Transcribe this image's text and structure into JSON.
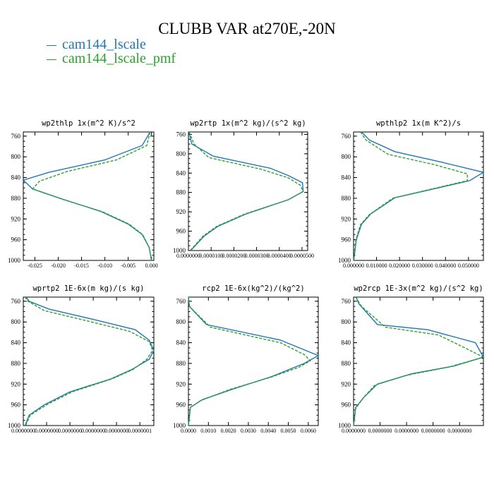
{
  "title": "CLUBB VAR at270E,-20N",
  "legend": [
    {
      "label": "cam144_lscale",
      "color": "#1f77b4"
    },
    {
      "label": "cam144_lscale_pmf",
      "color": "#2ca02c"
    }
  ],
  "chart_data": [
    {
      "type": "line",
      "title": "wp2thlp   1x(m^2 K)/s^2",
      "xlim": [
        -0.0275,
        0.0005
      ],
      "ylim": [
        1000,
        752
      ],
      "xticks": [
        "-0.025",
        "-0.020",
        "-0.015",
        "-0.010",
        "-0.005",
        "0.000"
      ],
      "xtick_values": [
        -0.025,
        -0.02,
        -0.015,
        -0.01,
        -0.005,
        0.0
      ],
      "yticks": [
        "760",
        "800",
        "840",
        "880",
        "920",
        "960",
        "1000"
      ],
      "series": [
        {
          "name": "cam144_lscale",
          "color": "#1f77b4",
          "dash": "",
          "x": [
            -0.0003,
            -0.002,
            -0.01,
            -0.022,
            -0.0275,
            -0.0255,
            -0.019,
            -0.011,
            -0.005,
            -0.002,
            -0.0005,
            0.0
          ],
          "y": [
            752,
            778,
            806,
            830,
            845,
            862,
            882,
            905,
            930,
            950,
            975,
            1000
          ]
        },
        {
          "name": "cam144_lscale_pmf",
          "color": "#2ca02c",
          "dash": "4,2",
          "x": [
            -0.0003,
            -0.001,
            -0.0075,
            -0.018,
            -0.024,
            -0.0255,
            -0.0188,
            -0.0105,
            -0.0048,
            -0.0019,
            -0.0005,
            0.0
          ],
          "y": [
            752,
            778,
            806,
            828,
            847,
            862,
            883,
            906,
            930,
            950,
            975,
            1000
          ]
        }
      ]
    },
    {
      "type": "line",
      "title": "wp2rtp   1x(m^2 kg)/(s^2 kg)",
      "xlim": [
        0.0,
        5.25e-05
      ],
      "ylim": [
        1000,
        755
      ],
      "xticks": [
        "0.0000000",
        "0.0000100",
        "0.0000200",
        "0.0000300",
        "0.0000400",
        "0.0000500"
      ],
      "xtick_values": [
        0.0,
        1e-05,
        2e-05,
        3e-05,
        4e-05,
        5e-05
      ],
      "yticks": [
        "760",
        "800",
        "840",
        "880",
        "920",
        "960",
        "1000"
      ],
      "series": [
        {
          "name": "cam144_lscale",
          "color": "#1f77b4",
          "dash": "",
          "x": [
            2e-07,
            1.5e-06,
            1.1e-05,
            3.6e-05,
            4.4e-05,
            5.02e-05,
            5.05e-05,
            4.4e-05,
            2.5e-05,
            1.3e-05,
            7e-06,
            1e-06
          ],
          "y": [
            755,
            780,
            805,
            830,
            845,
            860,
            878,
            895,
            925,
            950,
            970,
            1000
          ]
        },
        {
          "name": "cam144_lscale_pmf",
          "color": "#2ca02c",
          "dash": "4,2",
          "x": [
            3e-07,
            2.5e-06,
            9e-06,
            3.2e-05,
            4.4e-05,
            4.92e-05,
            5.05e-05,
            4.4e-05,
            2.45e-05,
            1.25e-05,
            6.5e-06,
            8e-07
          ],
          "y": [
            755,
            780,
            808,
            832,
            850,
            865,
            878,
            895,
            925,
            950,
            970,
            1000
          ]
        }
      ]
    },
    {
      "type": "line",
      "title": "wpthlp2   1x(m K^2)/s",
      "xlim": [
        0.0,
        0.0565
      ],
      "ylim": [
        1000,
        752
      ],
      "xticks": [
        "0.000000",
        "0.010000",
        "0.020000",
        "0.030000",
        "0.040000",
        "0.050000"
      ],
      "xtick_values": [
        0.0,
        0.01,
        0.02,
        0.03,
        0.04,
        0.05
      ],
      "yticks": [
        "760",
        "800",
        "840",
        "880",
        "920",
        "960",
        "1000"
      ],
      "series": [
        {
          "name": "cam144_lscale",
          "color": "#1f77b4",
          "dash": "",
          "x": [
            0.0035,
            0.007,
            0.018,
            0.038,
            0.0565,
            0.0505,
            0.018,
            0.0075,
            0.0035,
            0.0012,
            0.0001
          ],
          "y": [
            752,
            768,
            790,
            810,
            830,
            846,
            879,
            910,
            930,
            960,
            1000
          ]
        },
        {
          "name": "cam144_lscale_pmf",
          "color": "#2ca02c",
          "dash": "4,2",
          "x": [
            0.003,
            0.0055,
            0.015,
            0.035,
            0.0495,
            0.0495,
            0.017,
            0.0068,
            0.003,
            0.001,
            0.0001
          ],
          "y": [
            752,
            768,
            795,
            815,
            833,
            846,
            880,
            912,
            931,
            960,
            1000
          ]
        }
      ]
    },
    {
      "type": "line",
      "title": "wprtp2   1E-6x(m kg)/(s kg)",
      "xlim": [
        0.0,
        1.12e-07
      ],
      "ylim": [
        1000,
        752
      ],
      "xticks": [
        "0.0000000",
        "0.0000000",
        "0.0000000",
        "0.0000000",
        "0.0000000",
        "0.0000001"
      ],
      "xtick_values": [
        0.0,
        2e-08,
        4e-08,
        6e-08,
        8e-08,
        1e-07
      ],
      "yticks": [
        "760",
        "800",
        "840",
        "880",
        "920",
        "960",
        "1000"
      ],
      "series": [
        {
          "name": "cam144_lscale",
          "color": "#1f77b4",
          "dash": "",
          "x": [
            2.5e-09,
            5e-09,
            2.2e-08,
            6e-08,
            9.6e-08,
            1.08e-07,
            1.12e-07,
            1.08e-07,
            9.3e-08,
            7.5e-08,
            4e-08,
            1.8e-08,
            5e-09,
            1.5e-09
          ],
          "y": [
            752,
            760,
            775,
            795,
            815,
            835,
            855,
            872,
            892,
            910,
            935,
            960,
            980,
            1000
          ]
        },
        {
          "name": "cam144_lscale_pmf",
          "color": "#2ca02c",
          "dash": "4,2",
          "x": [
            1.5e-09,
            4e-09,
            1.8e-08,
            5.5e-08,
            9.1e-08,
            1.08e-07,
            1.11e-07,
            1.06e-07,
            9.4e-08,
            7.6e-08,
            4.2e-08,
            2e-08,
            6e-09,
            2e-09
          ],
          "y": [
            752,
            760,
            778,
            798,
            818,
            838,
            855,
            872,
            892,
            910,
            935,
            960,
            980,
            1000
          ]
        }
      ]
    },
    {
      "type": "line",
      "title": "rcp2   1E-6x(kg^2)/(kg^2)",
      "xlim": [
        0.0,
        6.5e-09
      ],
      "ylim": [
        1000,
        752
      ],
      "xticks": [
        "0.0000",
        "0.0010",
        "0.0020",
        "0.0030",
        "0.0040",
        "0.0050",
        "0.0060"
      ],
      "xtick_values": [
        0.0,
        1e-09,
        2e-09,
        3e-09,
        4e-09,
        5e-09,
        6e-09
      ],
      "yticks": [
        "760",
        "800",
        "840",
        "880",
        "920",
        "960",
        "1000"
      ],
      "series": [
        {
          "name": "cam144_lscale",
          "color": "#1f77b4",
          "dash": "",
          "x": [
            0.0,
            5e-11,
            9e-10,
            4.6e-09,
            6.5e-09,
            5.8e-09,
            4.2e-09,
            2.2e-09,
            7e-10,
            1e-10,
            0.0
          ],
          "y": [
            752,
            770,
            805,
            835,
            865,
            880,
            905,
            930,
            950,
            965,
            1000
          ]
        },
        {
          "name": "cam144_lscale_pmf",
          "color": "#2ca02c",
          "dash": "4,2",
          "x": [
            0.0,
            5e-11,
            1.1e-09,
            4.6e-09,
            5.8e-09,
            6.1e-09,
            5.5e-09,
            4.1e-09,
            2.1e-09,
            6e-10,
            1e-10,
            0.0
          ],
          "y": [
            752,
            770,
            810,
            840,
            863,
            875,
            888,
            907,
            930,
            952,
            965,
            1000
          ]
        }
      ]
    },
    {
      "type": "line",
      "title": "wp2rcp   1E-3x(m^2 kg)/(s^2 kg)",
      "xlim": [
        0.0,
        2.45e-08
      ],
      "ylim": [
        1000,
        752
      ],
      "xticks": [
        "0.0000000",
        "0.0000000",
        "0.0000000",
        "0.0000000",
        "0.0000000"
      ],
      "xtick_values": [
        0.0,
        5e-09,
        1e-08,
        1.5e-08,
        2e-08
      ],
      "yticks": [
        "760",
        "800",
        "840",
        "880",
        "920",
        "960",
        "1000"
      ],
      "series": [
        {
          "name": "cam144_lscale",
          "color": "#1f77b4",
          "dash": "",
          "x": [
            5e-10,
            1e-09,
            4.5e-09,
            1.4e-08,
            2.3e-08,
            2.45e-08,
            1.9e-08,
            1.1e-08,
            4.5e-09,
            2e-09,
            4e-10,
            0.0
          ],
          "y": [
            752,
            765,
            805,
            815,
            840,
            868,
            885,
            900,
            920,
            945,
            965,
            1000
          ]
        },
        {
          "name": "cam144_lscale_pmf",
          "color": "#2ca02c",
          "dash": "4,2",
          "x": [
            4e-10,
            1.5e-09,
            6e-09,
            1.6e-08,
            2.1e-08,
            2.45e-08,
            1.8e-08,
            1e-08,
            4e-09,
            1.8e-09,
            4e-10,
            0.0
          ],
          "y": [
            752,
            770,
            810,
            825,
            850,
            868,
            887,
            903,
            922,
            947,
            967,
            1000
          ]
        }
      ]
    }
  ]
}
